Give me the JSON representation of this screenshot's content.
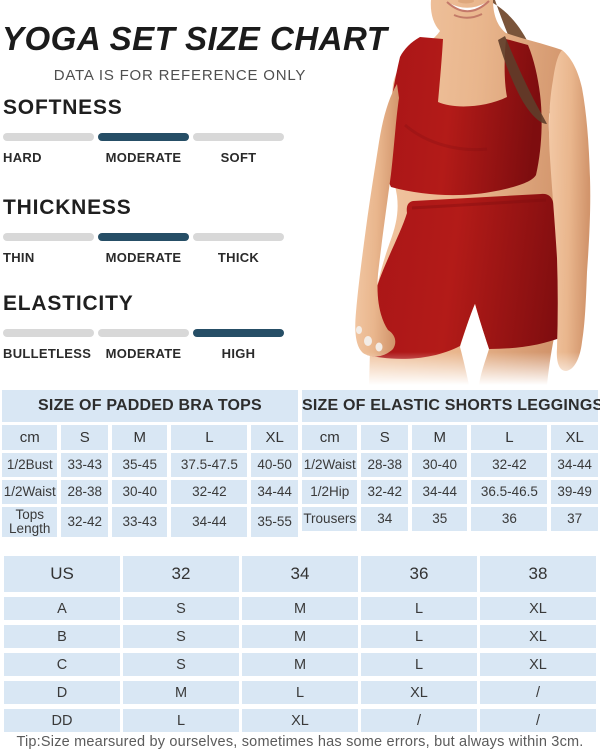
{
  "header": {
    "title": "YOGA SET SIZE CHART",
    "subtitle": "DATA IS FOR REFERENCE ONLY"
  },
  "attributes": [
    {
      "label": "SOFTNESS",
      "options": [
        "HARD",
        "MODERATE",
        "SOFT"
      ],
      "selected_index": 1
    },
    {
      "label": "THICKNESS",
      "options": [
        "THIN",
        "MODERATE",
        "THICK"
      ],
      "selected_index": 1
    },
    {
      "label": "ELASTICITY",
      "options": [
        "BULLETLESS",
        "MODERATE",
        "HIGH"
      ],
      "selected_index": 2
    }
  ],
  "model": {
    "description": "woman wearing dark red square-neck padded bra top and high-waist elastic shorts"
  },
  "tables": {
    "bra": {
      "title": "SIZE OF PADDED BRA TOPS",
      "headers": [
        "cm",
        "S",
        "M",
        "L",
        "XL"
      ],
      "rows": [
        [
          "1/2Bust",
          "33-43",
          "35-45",
          "37.5-47.5",
          "40-50"
        ],
        [
          "1/2Waist",
          "28-38",
          "30-40",
          "32-42",
          "34-44"
        ],
        [
          "Tops Length",
          "32-42",
          "33-43",
          "34-44",
          "35-55"
        ]
      ]
    },
    "shorts": {
      "title": "SIZE OF ELASTIC SHORTS LEGGINGS",
      "headers": [
        "cm",
        "S",
        "M",
        "L",
        "XL"
      ],
      "rows": [
        [
          "1/2Waist",
          "28-38",
          "30-40",
          "32-42",
          "34-44"
        ],
        [
          "1/2Hip",
          "32-42",
          "34-44",
          "36.5-46.5",
          "39-49"
        ],
        [
          "Trousers",
          "34",
          "35",
          "36",
          "37"
        ]
      ]
    },
    "us": {
      "headers": [
        "US",
        "32",
        "34",
        "36",
        "38"
      ],
      "rows": [
        [
          "A",
          "S",
          "M",
          "L",
          "XL"
        ],
        [
          "B",
          "S",
          "M",
          "L",
          "XL"
        ],
        [
          "C",
          "S",
          "M",
          "L",
          "XL"
        ],
        [
          "D",
          "M",
          "L",
          "XL",
          "/"
        ],
        [
          "DD",
          "L",
          "XL",
          "/",
          "/"
        ]
      ]
    }
  },
  "footer": {
    "tip": "Tip:Size mearsured by ourselves, sometimes has some errors, but always within 3cm."
  },
  "colors": {
    "accent": "#264e66",
    "bar_gray": "#d8d8d8",
    "table_blue": "#d9e7f4",
    "garment_red": "#a31315"
  }
}
